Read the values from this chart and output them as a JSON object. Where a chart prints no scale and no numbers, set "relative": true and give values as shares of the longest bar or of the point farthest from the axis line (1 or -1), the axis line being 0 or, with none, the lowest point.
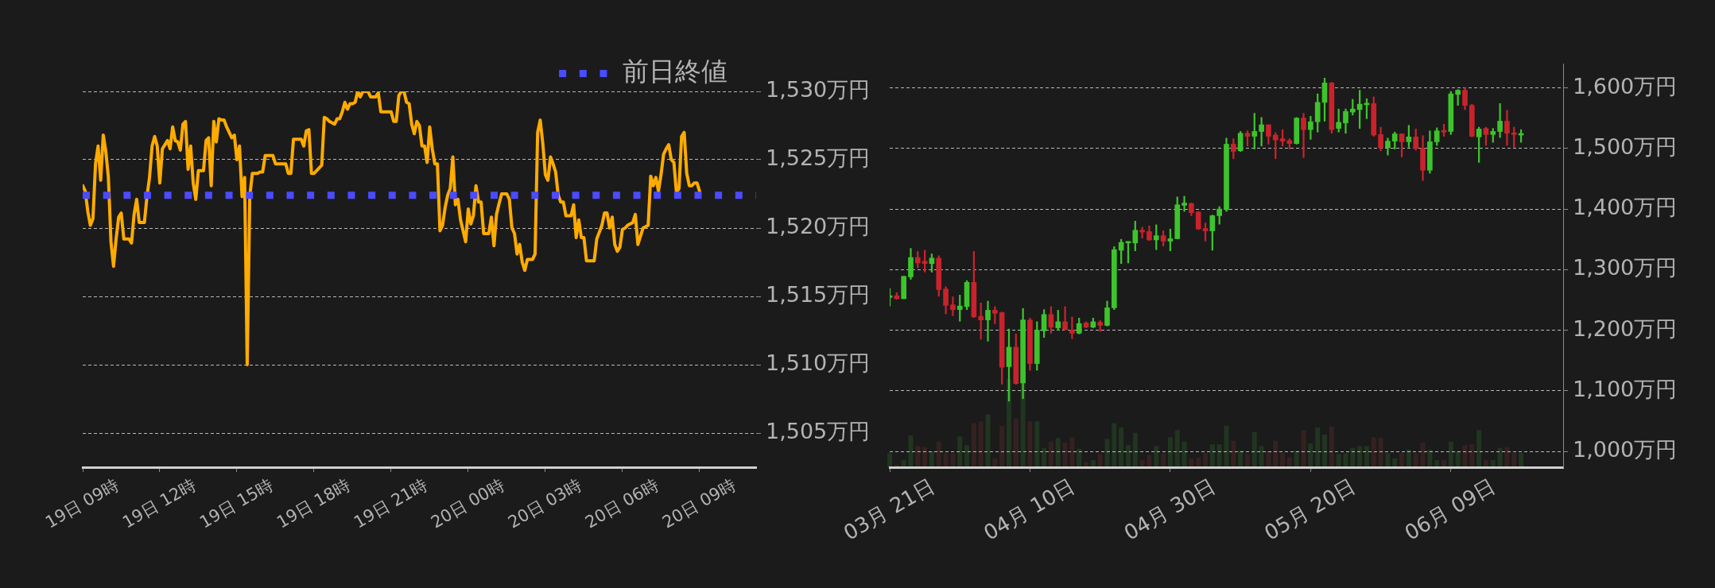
{
  "chart_data": [
    {
      "type": "line",
      "categories": [
        "19日 09時",
        null,
        null,
        null,
        null,
        null,
        null,
        null,
        null,
        null,
        null,
        null,
        null,
        null,
        null,
        null,
        null,
        null,
        null,
        null,
        null,
        null,
        null,
        null,
        null,
        null,
        null,
        null,
        null,
        null,
        "19日 12時",
        null,
        null,
        null,
        null,
        null,
        null,
        null,
        null,
        null,
        null,
        null,
        null,
        null,
        null,
        null,
        null,
        null,
        null,
        null,
        null,
        null,
        null,
        null,
        null,
        null,
        null,
        null,
        null,
        null,
        "19日 15時",
        null,
        null,
        null,
        null,
        null,
        null,
        null,
        null,
        null,
        null,
        null,
        null,
        null,
        null,
        null,
        null,
        null,
        null,
        null,
        null,
        null,
        null,
        null,
        null,
        null,
        null,
        null,
        null,
        null,
        "19日 18時",
        null,
        null,
        null,
        null,
        null,
        null,
        null,
        null,
        null,
        null,
        null,
        null,
        null,
        null,
        null,
        null,
        null,
        null,
        null,
        null,
        null,
        null,
        null,
        null,
        null,
        null,
        null,
        null,
        null,
        "19日 21時",
        null,
        null,
        null,
        null,
        null,
        null,
        null,
        null,
        null,
        null,
        null,
        null,
        null,
        null,
        null,
        null,
        null,
        null,
        null,
        null,
        null,
        null,
        null,
        null,
        null,
        null,
        null,
        null,
        null,
        "20日 00時",
        null,
        null,
        null,
        null,
        null,
        null,
        null,
        null,
        null,
        null,
        null,
        null,
        null,
        null,
        null,
        null,
        null,
        null,
        null,
        null,
        null,
        null,
        null,
        null,
        null,
        null,
        null,
        null,
        null,
        "20日 03時",
        null,
        null,
        null,
        null,
        null,
        null,
        null,
        null,
        null,
        null,
        null,
        null,
        null,
        null,
        null,
        null,
        null,
        null,
        null,
        null,
        null,
        null,
        null,
        null,
        null,
        null,
        null,
        null,
        null,
        "20日 06時",
        null,
        null,
        null,
        null,
        null,
        null,
        null,
        null,
        null,
        null,
        null,
        null,
        null,
        null,
        null,
        null,
        null,
        null,
        null,
        null,
        null,
        null,
        null,
        null,
        null,
        null,
        null,
        null,
        null,
        "20日 09時",
        null,
        null,
        null,
        null,
        null,
        null,
        null,
        null,
        null,
        null,
        null,
        null,
        null,
        null,
        null,
        null,
        null,
        null,
        null,
        null,
        null,
        null
      ],
      "series": [
        {
          "color": "#ffab00",
          "values": [
            1523.1,
            1522.7,
            1521.2,
            1520.2,
            1520.7,
            1524.7,
            1526,
            1523.5,
            1526.8,
            1525.6,
            1523.7,
            1519,
            1517.2,
            1519.2,
            1520.8,
            1521.1,
            1519.2,
            1519.2,
            1519.2,
            1518.9,
            1521,
            1522.1,
            1520.4,
            1520.4,
            1520.4,
            1522.3,
            1523.7,
            1526,
            1526.7,
            1526,
            1523.3,
            1525.8,
            1526.1,
            1526.4,
            1525.8,
            1527.4,
            1526.4,
            1526.3,
            1525.7,
            1527.6,
            1527.8,
            1524.3,
            1526,
            1523.3,
            1522.1,
            1524.2,
            1524.2,
            1524.2,
            1526.4,
            1526.6,
            1523.1,
            1527.8,
            1526.3,
            1528,
            1527.9,
            1527.9,
            1527.4,
            1527,
            1526.6,
            1526.8,
            1525,
            1526,
            1522.3,
            1523.7,
            1510,
            1522.3,
            1524,
            1524,
            1524,
            1524.1,
            1524.1,
            1525.3,
            1525.3,
            1525.3,
            1525.3,
            1524.7,
            1524.7,
            1524.7,
            1524.7,
            1524.7,
            1524,
            1524,
            1526.5,
            1526.5,
            1526.5,
            1526.5,
            1526,
            1527.1,
            1527.2,
            1524,
            1524,
            1524.2,
            1524.4,
            1524.6,
            1528.1,
            1528,
            1527.8,
            1527.7,
            1527.6,
            1528,
            1528,
            1528.5,
            1529.2,
            1528.7,
            1529.1,
            1529.1,
            1529.2,
            1530,
            1529.6,
            1530,
            1530,
            1530,
            1529.6,
            1529.6,
            1529.6,
            1529.9,
            1528.5,
            1528.5,
            1528.5,
            1528.5,
            1528.5,
            1527.8,
            1527.8,
            1529.7,
            1530,
            1530,
            1529.2,
            1529.1,
            1527.6,
            1526.9,
            1527.8,
            1527.5,
            1526,
            1526,
            1524.8,
            1527.4,
            1525.8,
            1524.7,
            1524.7,
            1519.8,
            1520.2,
            1521.5,
            1522.4,
            1522.9,
            1525.2,
            1521.7,
            1522.1,
            1520.6,
            1519.8,
            1519,
            1521.4,
            1520.3,
            1520.9,
            1523.1,
            1521.9,
            1521.9,
            1519.6,
            1519.6,
            1519.6,
            1520.8,
            1518.7,
            1521,
            1521.8,
            1522.5,
            1522.5,
            1522.5,
            1522.1,
            1520,
            1519.6,
            1518.1,
            1518.8,
            1517.5,
            1516.9,
            1517.7,
            1517.7,
            1517.7,
            1518.1,
            1527,
            1527.9,
            1526.2,
            1523.9,
            1523.5,
            1525.2,
            1524.7,
            1524.1,
            1522.4,
            1521.9,
            1521.9,
            1520.9,
            1520.9,
            1520.9,
            1521.7,
            1519.3,
            1520.6,
            1519.3,
            1519.3,
            1517.6,
            1517.6,
            1517.6,
            1517.6,
            1519.2,
            1519.7,
            1520.2,
            1521.1,
            1521.1,
            1520,
            1520.8,
            1518.8,
            1518.3,
            1518.6,
            1519.9,
            1520,
            1520.2,
            1520.3,
            1520.4,
            1521,
            1518.8,
            1519.4,
            1520,
            1520.1,
            1520.2,
            1523.8,
            1523.1,
            1523.7,
            1522.7,
            1523.9,
            1525.4,
            1525.8,
            1526.1,
            1525,
            1524.8,
            1522.6,
            1522.9,
            1526.7,
            1527,
            1524,
            1523.1,
            1523.1,
            1523.3,
            1523.3,
            1522.7,
            null,
            null,
            null,
            null,
            null,
            null,
            null,
            null,
            null,
            null,
            null,
            null,
            null,
            null,
            null,
            null,
            null,
            null,
            null,
            null,
            null,
            null
          ]
        }
      ],
      "ylim": [
        1502.5,
        1530
      ],
      "yticks": [
        {
          "value": 1505,
          "label": "1,505万円"
        },
        {
          "value": 1510,
          "label": "1,510万円"
        },
        {
          "value": 1515,
          "label": "1,515万円"
        },
        {
          "value": 1520,
          "label": "1,520万円"
        },
        {
          "value": 1525,
          "label": "1,525万円"
        },
        {
          "value": 1530,
          "label": "1,530万円"
        }
      ],
      "grid": "y",
      "legend": "top right",
      "ref_lines": [
        {
          "axis": "y",
          "value": 1522.4,
          "label": "前日終値",
          "color": "#4b4bff",
          "line_style": "dotted"
        }
      ]
    },
    {
      "type": "candlestick",
      "x": [
        "--03-21",
        "--03-22",
        "--03-23",
        "--03-24",
        "--03-25",
        "--03-26",
        "--03-27",
        "--03-28",
        "--03-29",
        "--03-30",
        "--03-31",
        "--04-01",
        "--04-02",
        "--04-03",
        "--04-04",
        "--04-05",
        "--04-06",
        "--04-07",
        "--04-08",
        "--04-09",
        "--04-10",
        "--04-11",
        "--04-12",
        "--04-13",
        "--04-14",
        "--04-15",
        "--04-16",
        "--04-17",
        "--04-18",
        "--04-19",
        "--04-20",
        "--04-21",
        "--04-22",
        "--04-23",
        "--04-24",
        "--04-25",
        "--04-26",
        "--04-27",
        "--04-28",
        "--04-29",
        "--04-30",
        "--05-01",
        "--05-02",
        "--05-03",
        "--05-04",
        "--05-05",
        "--05-06",
        "--05-07",
        "--05-08",
        "--05-09",
        "--05-10",
        "--05-11",
        "--05-12",
        "--05-13",
        "--05-14",
        "--05-15",
        "--05-16",
        "--05-17",
        "--05-18",
        "--05-19",
        "--05-20",
        "--05-21",
        "--05-22",
        "--05-23",
        "--05-24",
        "--05-25",
        "--05-26",
        "--05-27",
        "--05-28",
        "--05-29",
        "--05-30",
        "--05-31",
        "--06-01",
        "--06-02",
        "--06-03",
        "--06-04",
        "--06-05",
        "--06-06",
        "--06-07",
        "--06-08",
        "--06-09",
        "--06-10",
        "--06-11",
        "--06-12",
        "--06-13",
        "--06-14",
        "--06-15",
        "--06-16",
        "--06-17",
        "--06-18",
        "--06-19"
      ],
      "ohlc": [
        [
          1254,
          1269,
          1240,
          1257
        ],
        [
          1257,
          1262,
          1251,
          1252
        ],
        [
          1252,
          1289,
          1252,
          1289
        ],
        [
          1288,
          1335,
          1284,
          1320
        ],
        [
          1320,
          1330,
          1303,
          1311
        ],
        [
          1314,
          1332,
          1296,
          1310
        ],
        [
          1310,
          1326,
          1296,
          1319
        ],
        [
          1319,
          1323,
          1256,
          1267
        ],
        [
          1268,
          1272,
          1227,
          1241
        ],
        [
          1242,
          1255,
          1224,
          1234
        ],
        [
          1234,
          1258,
          1215,
          1240
        ],
        [
          1239,
          1282,
          1234,
          1279
        ],
        [
          1279,
          1330,
          1221,
          1222
        ],
        [
          1223,
          1245,
          1185,
          1217
        ],
        [
          1217,
          1248,
          1182,
          1233
        ],
        [
          1233,
          1239,
          1211,
          1228
        ],
        [
          1229,
          1230,
          1111,
          1139
        ],
        [
          1140,
          1202,
          1083,
          1172
        ],
        [
          1172,
          1194,
          1111,
          1112
        ],
        [
          1113,
          1236,
          1087,
          1217
        ],
        [
          1217,
          1220,
          1134,
          1145
        ],
        [
          1145,
          1214,
          1134,
          1200
        ],
        [
          1199,
          1234,
          1188,
          1226
        ],
        [
          1226,
          1239,
          1195,
          1205
        ],
        [
          1204,
          1233,
          1200,
          1214
        ],
        [
          1214,
          1239,
          1200,
          1201
        ],
        [
          1200,
          1222,
          1186,
          1195
        ],
        [
          1195,
          1220,
          1194,
          1211
        ],
        [
          1212,
          1214,
          1204,
          1205
        ],
        [
          1205,
          1220,
          1204,
          1214
        ],
        [
          1213,
          1216,
          1198,
          1208
        ],
        [
          1208,
          1248,
          1207,
          1237
        ],
        [
          1237,
          1338,
          1234,
          1333
        ],
        [
          1332,
          1350,
          1310,
          1345
        ],
        [
          1344,
          1346,
          1311,
          1345
        ],
        [
          1344,
          1380,
          1331,
          1365
        ],
        [
          1365,
          1370,
          1352,
          1362
        ],
        [
          1363,
          1372,
          1348,
          1349
        ],
        [
          1349,
          1374,
          1333,
          1356
        ],
        [
          1356,
          1364,
          1339,
          1347
        ],
        [
          1347,
          1367,
          1331,
          1351
        ],
        [
          1351,
          1420,
          1351,
          1407
        ],
        [
          1406,
          1421,
          1396,
          1410
        ],
        [
          1409,
          1410,
          1389,
          1394
        ],
        [
          1395,
          1396,
          1366,
          1367
        ],
        [
          1368,
          1377,
          1347,
          1364
        ],
        [
          1364,
          1390,
          1332,
          1389
        ],
        [
          1389,
          1404,
          1375,
          1400
        ],
        [
          1399,
          1517,
          1396,
          1507
        ],
        [
          1507,
          1516,
          1483,
          1495
        ],
        [
          1496,
          1528,
          1495,
          1525
        ],
        [
          1525,
          1529,
          1504,
          1520
        ],
        [
          1520,
          1558,
          1499,
          1528
        ],
        [
          1528,
          1551,
          1504,
          1539
        ],
        [
          1539,
          1539,
          1507,
          1520
        ],
        [
          1522,
          1526,
          1483,
          1514
        ],
        [
          1516,
          1531,
          1504,
          1512
        ],
        [
          1513,
          1516,
          1499,
          1508
        ],
        [
          1508,
          1551,
          1507,
          1550
        ],
        [
          1550,
          1558,
          1485,
          1531
        ],
        [
          1531,
          1553,
          1515,
          1544
        ],
        [
          1544,
          1590,
          1527,
          1576
        ],
        [
          1576,
          1616,
          1545,
          1608
        ],
        [
          1608,
          1609,
          1525,
          1531
        ],
        [
          1533,
          1565,
          1527,
          1543
        ],
        [
          1542,
          1565,
          1525,
          1561
        ],
        [
          1560,
          1581,
          1555,
          1565
        ],
        [
          1564,
          1596,
          1533,
          1573
        ],
        [
          1572,
          1582,
          1549,
          1574
        ],
        [
          1574,
          1585,
          1520,
          1522
        ],
        [
          1523,
          1535,
          1496,
          1501
        ],
        [
          1501,
          1517,
          1489,
          1512
        ],
        [
          1512,
          1527,
          1499,
          1524
        ],
        [
          1524,
          1524,
          1486,
          1511
        ],
        [
          1511,
          1538,
          1502,
          1519
        ],
        [
          1519,
          1532,
          1497,
          1500
        ],
        [
          1500,
          1521,
          1447,
          1464
        ],
        [
          1464,
          1529,
          1459,
          1511
        ],
        [
          1511,
          1534,
          1505,
          1529
        ],
        [
          1529,
          1540,
          1520,
          1527
        ],
        [
          1528,
          1594,
          1523,
          1590
        ],
        [
          1589,
          1597,
          1571,
          1596
        ],
        [
          1596,
          1600,
          1564,
          1571
        ],
        [
          1571,
          1573,
          1519,
          1520
        ],
        [
          1519,
          1535,
          1477,
          1532
        ],
        [
          1533,
          1535,
          1505,
          1523
        ],
        [
          1523,
          1533,
          1510,
          1528
        ],
        [
          1528,
          1574,
          1518,
          1545
        ],
        [
          1545,
          1563,
          1505,
          1525
        ],
        [
          1525,
          1535,
          1502,
          1523
        ],
        [
          1522,
          1531,
          1510,
          1523
        ]
      ],
      "colors": [
        "#3dc42c",
        "#c8232c",
        "#3dc42c",
        "#3dc42c",
        "#c8232c",
        "#c8232c",
        "#3dc42c",
        "#c8232c",
        "#c8232c",
        "#c8232c",
        "#3dc42c",
        "#3dc42c",
        "#c8232c",
        "#c8232c",
        "#3dc42c",
        "#c8232c",
        "#c8232c",
        "#3dc42c",
        "#c8232c",
        "#3dc42c",
        "#c8232c",
        "#3dc42c",
        "#3dc42c",
        "#c8232c",
        "#3dc42c",
        "#c8232c",
        "#c8232c",
        "#3dc42c",
        "#c8232c",
        "#3dc42c",
        "#c8232c",
        "#3dc42c",
        "#3dc42c",
        "#3dc42c",
        "#3dc42c",
        "#3dc42c",
        "#c8232c",
        "#c8232c",
        "#3dc42c",
        "#c8232c",
        "#3dc42c",
        "#3dc42c",
        "#3dc42c",
        "#c8232c",
        "#c8232c",
        "#c8232c",
        "#3dc42c",
        "#3dc42c",
        "#3dc42c",
        "#c8232c",
        "#3dc42c",
        "#c8232c",
        "#3dc42c",
        "#3dc42c",
        "#c8232c",
        "#c8232c",
        "#c8232c",
        "#c8232c",
        "#3dc42c",
        "#c8232c",
        "#3dc42c",
        "#3dc42c",
        "#3dc42c",
        "#c8232c",
        "#3dc42c",
        "#3dc42c",
        "#3dc42c",
        "#3dc42c",
        "#3dc42c",
        "#c8232c",
        "#c8232c",
        "#3dc42c",
        "#3dc42c",
        "#c8232c",
        "#3dc42c",
        "#c8232c",
        "#c8232c",
        "#3dc42c",
        "#3dc42c",
        "#c8232c",
        "#3dc42c",
        "#3dc42c",
        "#c8232c",
        "#c8232c",
        "#3dc42c",
        "#c8232c",
        "#3dc42c",
        "#3dc42c",
        "#c8232c",
        "#c8232c",
        "#3dc42c"
      ],
      "xlim": [
        "--03-21",
        "--06-25"
      ],
      "xticks": [
        {
          "value": "--03-21",
          "label": "03月 21日"
        },
        {
          "value": "--04-10",
          "label": "04月 10日"
        },
        {
          "value": "--04-30",
          "label": "04月 30日"
        },
        {
          "value": "--05-20",
          "label": "05月 20日"
        },
        {
          "value": "--06-09",
          "label": "06月 09日"
        }
      ],
      "ylim": [
        974,
        1640
      ],
      "yticks": [
        {
          "value": 1000,
          "label": "1,000万円"
        },
        {
          "value": 1100,
          "label": "1,100万円"
        },
        {
          "value": 1200,
          "label": "1,200万円"
        },
        {
          "value": 1300,
          "label": "1,300万円"
        },
        {
          "value": 1400,
          "label": "1,400万円"
        },
        {
          "value": 1500,
          "label": "1,500万円"
        },
        {
          "value": 1600,
          "label": "1,600万円"
        }
      ],
      "grid": "y"
    },
    {
      "type": "bar",
      "relative": true,
      "tick_labels": false,
      "categories": [
        null,
        null,
        null,
        null,
        null,
        null,
        null,
        null,
        null,
        null,
        null,
        null,
        null,
        null,
        null,
        null,
        null,
        null,
        null,
        null,
        null,
        null,
        null,
        null,
        null,
        null,
        null,
        null,
        null,
        null,
        null,
        null,
        null,
        null,
        null,
        null,
        null,
        null,
        null,
        null,
        null,
        null,
        null,
        null,
        null,
        null,
        null,
        null,
        null,
        null,
        null,
        null,
        null,
        null,
        null,
        null,
        null,
        null,
        null,
        null,
        null,
        null,
        null,
        null,
        null,
        null,
        null,
        null,
        null,
        null,
        null,
        null,
        null,
        null,
        null,
        null,
        null,
        null,
        null,
        null,
        null,
        null,
        null,
        null,
        null,
        null,
        null,
        null,
        null,
        null,
        null
      ],
      "values": [
        0.16,
        0.03,
        0.08,
        0.36,
        0.24,
        0.23,
        0.18,
        0.29,
        0.16,
        0.16,
        0.35,
        0.25,
        0.5,
        0.52,
        0.6,
        0.1,
        0.47,
        1,
        0.55,
        0.97,
        0.52,
        0.52,
        0.22,
        0.29,
        0.33,
        0.28,
        0.34,
        0.21,
        0.06,
        0.08,
        0.15,
        0.32,
        0.5,
        0.45,
        0.25,
        0.39,
        0.08,
        0.14,
        0.24,
        0.16,
        0.34,
        0.42,
        0.29,
        0.1,
        0.11,
        0.16,
        0.26,
        0.26,
        0.47,
        0.3,
        0.19,
        0.15,
        0.4,
        0.24,
        0.18,
        0.3,
        0.16,
        0.11,
        0.19,
        0.42,
        0.27,
        0.45,
        0.37,
        0.46,
        0.15,
        0.16,
        0.22,
        0.24,
        0.24,
        0.34,
        0.33,
        0.16,
        0.1,
        0.16,
        0.2,
        0.16,
        0.28,
        0.2,
        0.08,
        0.08,
        0.29,
        0.18,
        0.25,
        0.26,
        0.42,
        0.08,
        0.08,
        0.22,
        0.23,
        0.16,
        0.16
      ],
      "colors": [
        "#213521",
        "#362121",
        "#213521",
        "#213521",
        "#362121",
        "#362121",
        "#213521",
        "#362121",
        "#362121",
        "#362121",
        "#213521",
        "#213521",
        "#362121",
        "#362121",
        "#213521",
        "#362121",
        "#362121",
        "#213521",
        "#362121",
        "#213521",
        "#362121",
        "#213521",
        "#213521",
        "#362121",
        "#213521",
        "#362121",
        "#362121",
        "#213521",
        "#362121",
        "#213521",
        "#362121",
        "#213521",
        "#213521",
        "#213521",
        "#213521",
        "#213521",
        "#362121",
        "#362121",
        "#213521",
        "#362121",
        "#213521",
        "#213521",
        "#213521",
        "#362121",
        "#362121",
        "#362121",
        "#213521",
        "#213521",
        "#213521",
        "#362121",
        "#213521",
        "#362121",
        "#213521",
        "#213521",
        "#362121",
        "#362121",
        "#362121",
        "#362121",
        "#213521",
        "#362121",
        "#213521",
        "#213521",
        "#213521",
        "#362121",
        "#213521",
        "#213521",
        "#213521",
        "#213521",
        "#213521",
        "#362121",
        "#362121",
        "#213521",
        "#213521",
        "#362121",
        "#213521",
        "#362121",
        "#362121",
        "#213521",
        "#213521",
        "#362121",
        "#213521",
        "#213521",
        "#362121",
        "#362121",
        "#213521",
        "#362121",
        "#213521",
        "#213521",
        "#362121",
        "#362121",
        "#213521"
      ]
    }
  ]
}
